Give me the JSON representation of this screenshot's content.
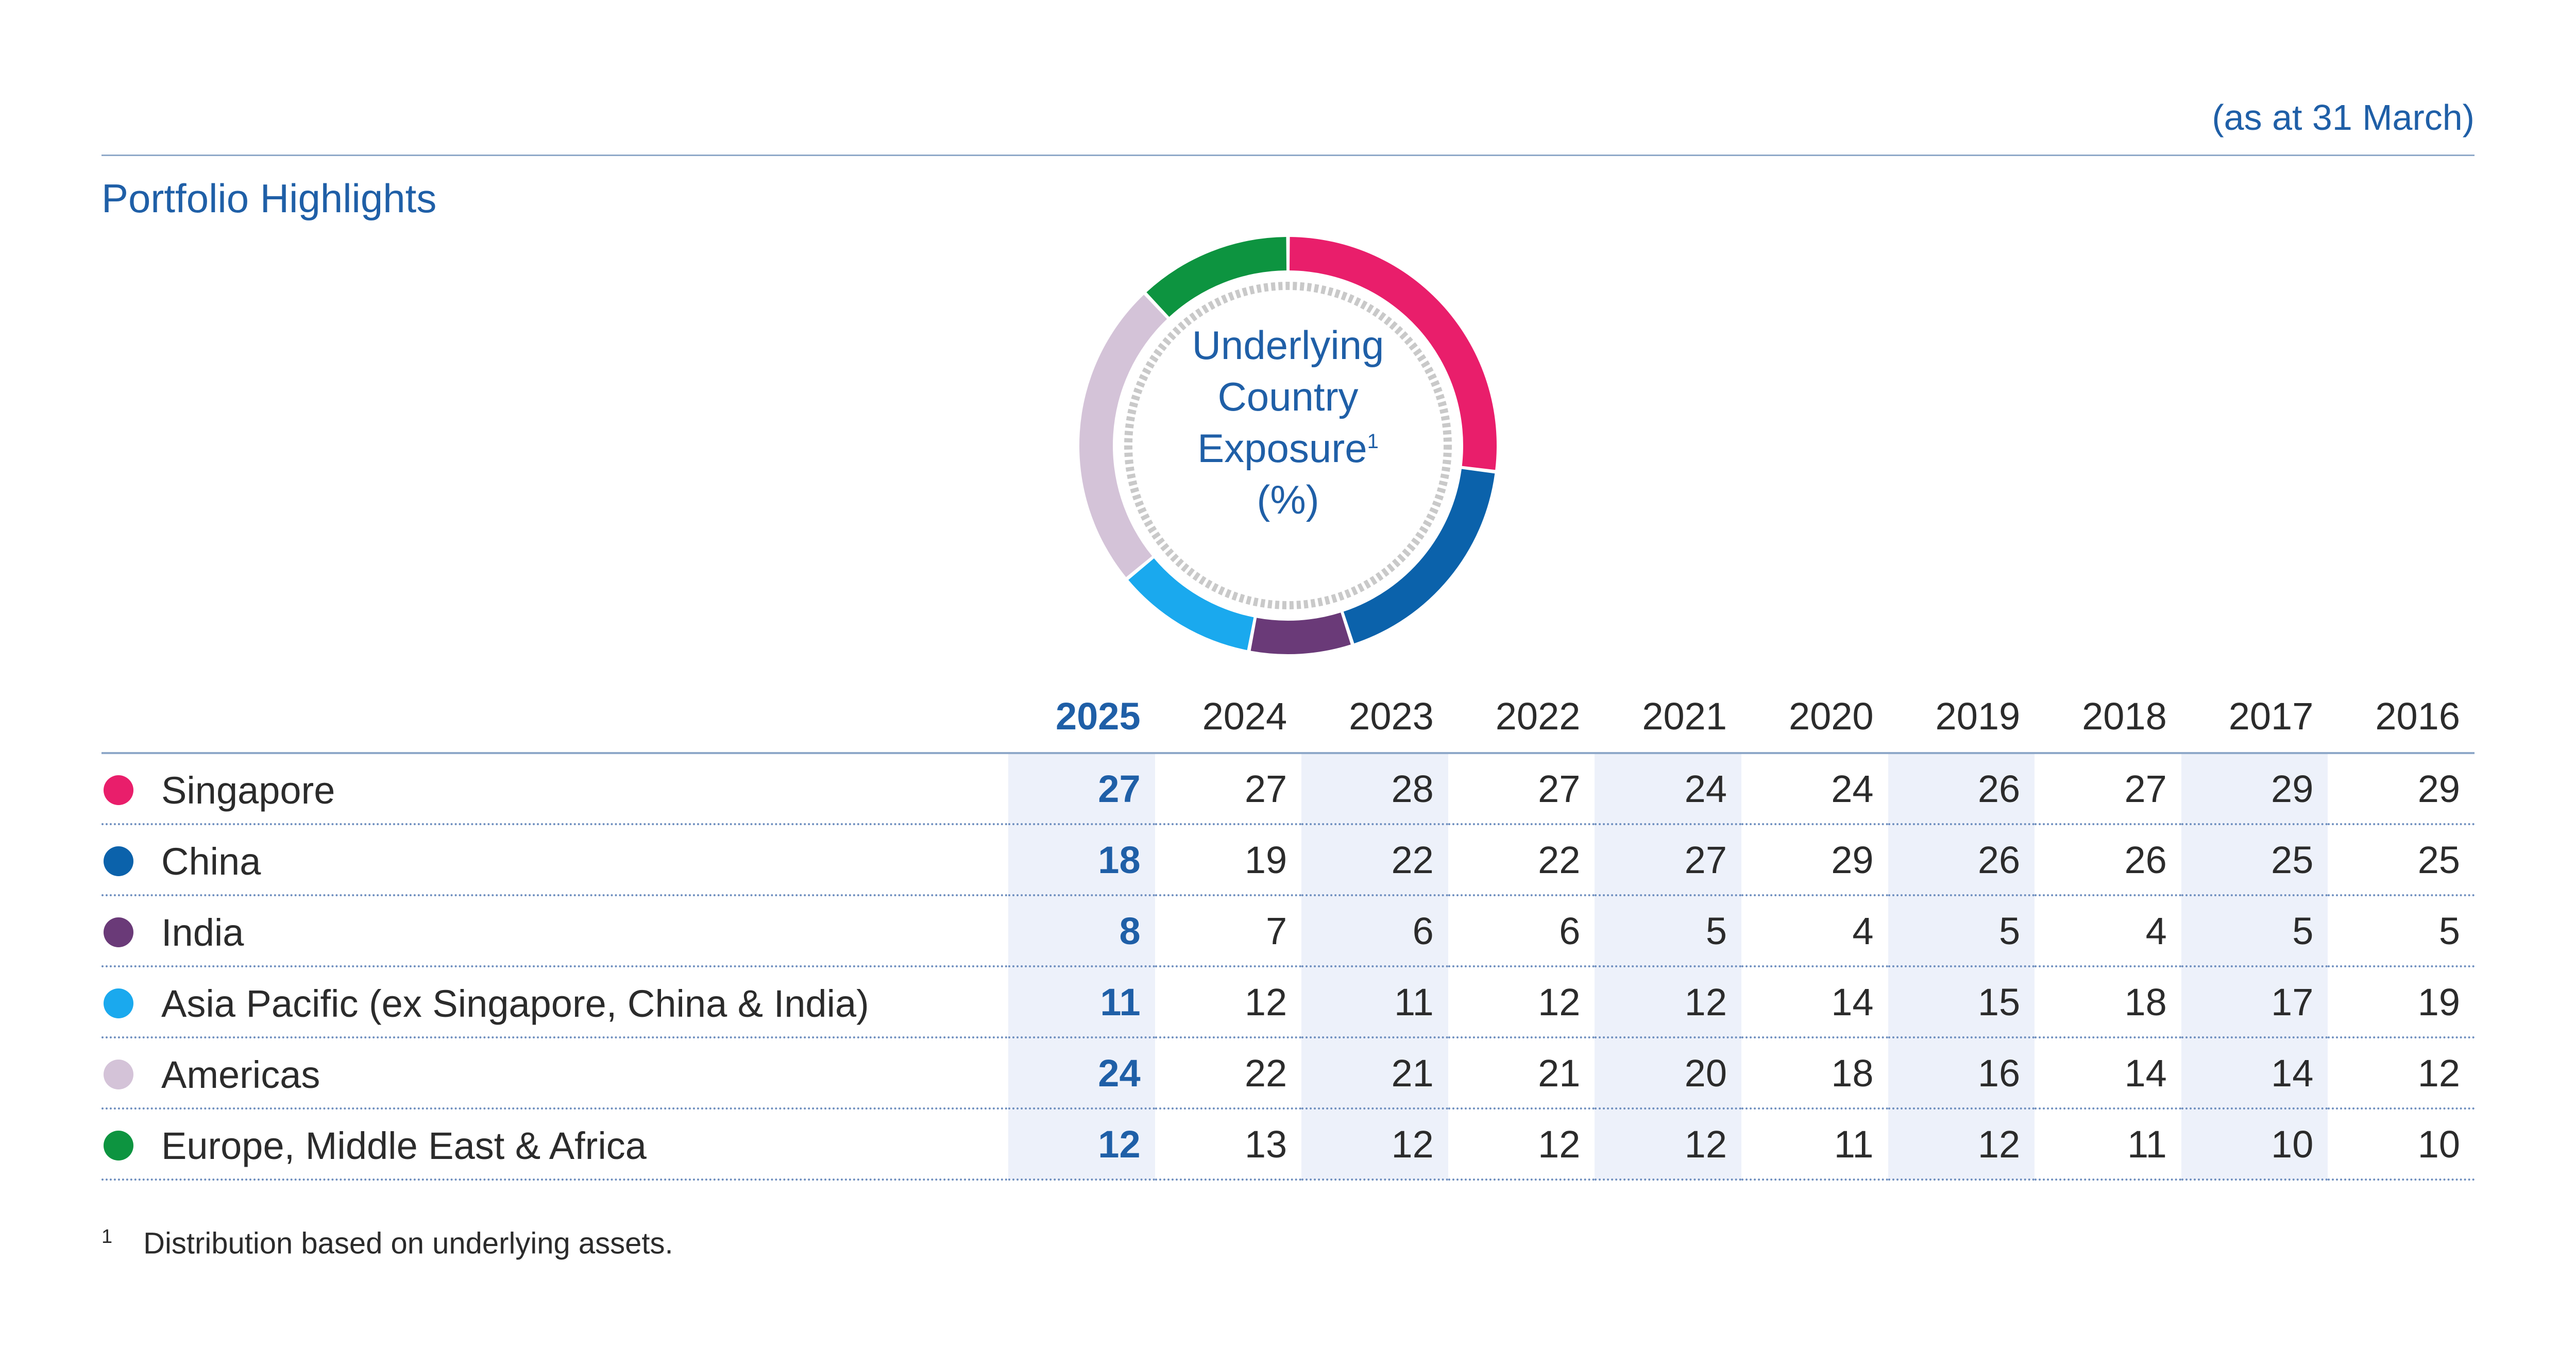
{
  "as_at": "(as at 31 March)",
  "section_title": "Portfolio Highlights",
  "chart_data": {
    "type": "pie",
    "title_lines": [
      "Underlying",
      "Country",
      "Exposure",
      "(%)"
    ],
    "title_footnote_mark": "1",
    "current_year": "2025",
    "years": [
      "2025",
      "2024",
      "2023",
      "2022",
      "2021",
      "2020",
      "2019",
      "2018",
      "2017",
      "2016"
    ],
    "series": [
      {
        "name": "Singapore",
        "color": "#e91e6b",
        "values": [
          27,
          27,
          28,
          27,
          24,
          24,
          26,
          27,
          29,
          29
        ]
      },
      {
        "name": "China",
        "color": "#0b62ab",
        "values": [
          18,
          19,
          22,
          22,
          27,
          29,
          26,
          26,
          25,
          25
        ]
      },
      {
        "name": "India",
        "color": "#6a3a78",
        "values": [
          8,
          7,
          6,
          6,
          5,
          4,
          5,
          4,
          5,
          5
        ]
      },
      {
        "name": "Asia Pacific (ex Singapore, China & India)",
        "color": "#1aa9ee",
        "values": [
          11,
          12,
          11,
          12,
          12,
          14,
          15,
          18,
          17,
          19
        ]
      },
      {
        "name": "Americas",
        "color": "#d4c3d8",
        "values": [
          24,
          22,
          21,
          21,
          20,
          18,
          16,
          14,
          14,
          12
        ]
      },
      {
        "name": "Europe, Middle East & Africa",
        "color": "#0d9440",
        "values": [
          12,
          13,
          12,
          12,
          12,
          11,
          12,
          11,
          10,
          10
        ]
      }
    ]
  },
  "footnote": {
    "mark": "1",
    "text": "Distribution based on underlying assets."
  }
}
